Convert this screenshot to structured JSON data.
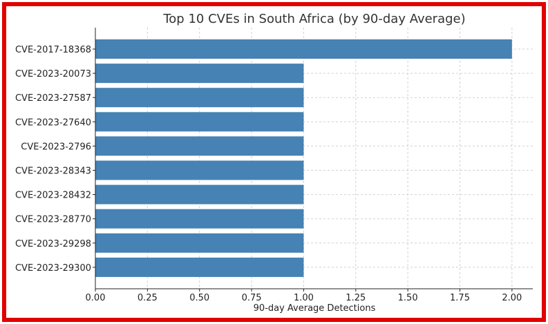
{
  "chart_data": {
    "type": "bar",
    "orientation": "horizontal",
    "title": "Top 10 CVEs in South Africa (by 90-day Average)",
    "xlabel": "90-day Average Detections",
    "ylabel": "",
    "categories": [
      "CVE-2017-18368",
      "CVE-2023-20073",
      "CVE-2023-27587",
      "CVE-2023-27640",
      "CVE-2023-2796",
      "CVE-2023-28343",
      "CVE-2023-28432",
      "CVE-2023-28770",
      "CVE-2023-29298",
      "CVE-2023-29300"
    ],
    "values": [
      2,
      1,
      1,
      1,
      1,
      1,
      1,
      1,
      1,
      1
    ],
    "xlim": [
      0,
      2.1
    ],
    "xticks": [
      "0.00",
      "0.25",
      "0.50",
      "0.75",
      "1.00",
      "1.25",
      "1.50",
      "1.75",
      "2.00"
    ],
    "grid": true,
    "bar_color": "#4682b4",
    "frame_color": "#e00000"
  }
}
